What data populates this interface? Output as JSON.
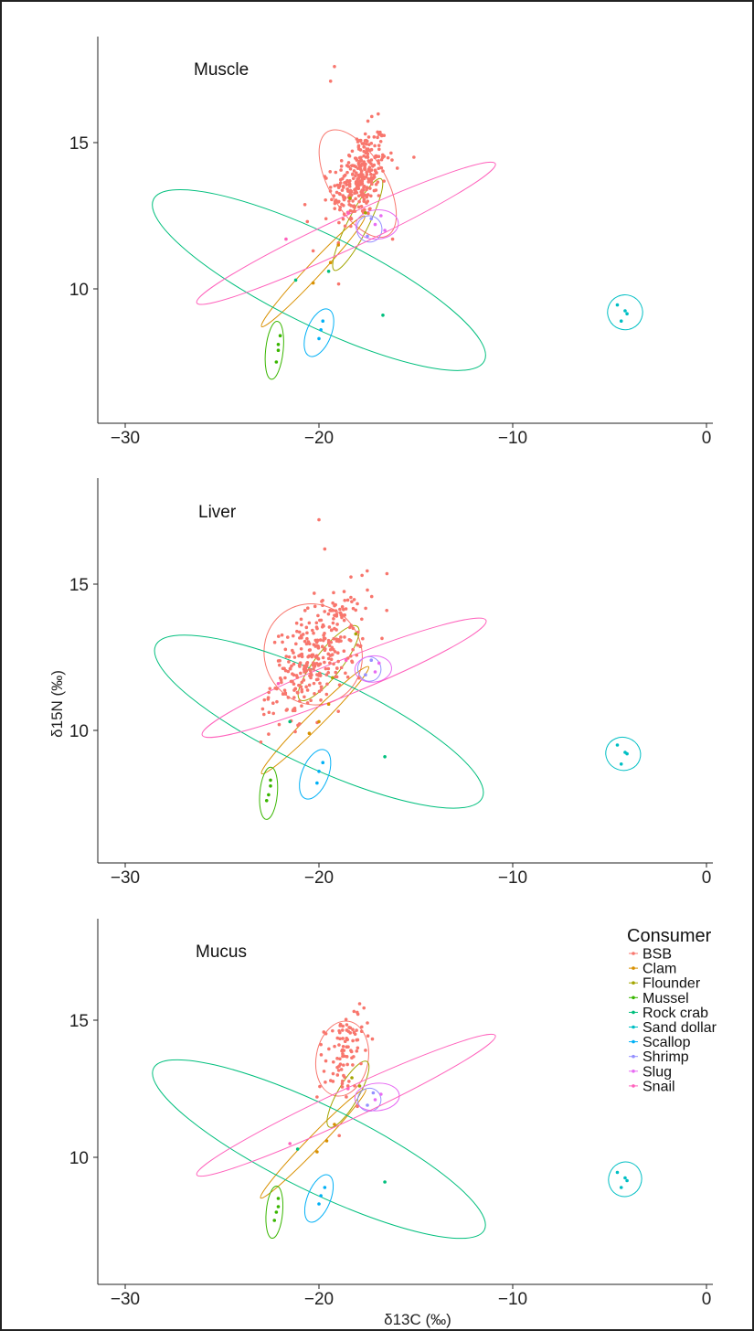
{
  "chart_data": {
    "type": "scatter",
    "x_axis": {
      "title": "δ13C (‰)",
      "lim": [
        -30,
        0
      ],
      "ticks": [
        -30,
        -20,
        -10,
        0
      ],
      "tick_labels": [
        "−30",
        "−20",
        "−10",
        "0"
      ]
    },
    "y_axis": {
      "title": "δ15N (‰)",
      "lim": [
        6,
        18.5
      ],
      "ticks": [
        10,
        15
      ],
      "tick_labels": [
        "10",
        "15"
      ]
    },
    "grid": false,
    "legend": {
      "title": "Consumer",
      "placement": "top-right of bottom panel",
      "entries": [
        {
          "name": "BSB",
          "color": "#F8766D"
        },
        {
          "name": "Clam",
          "color": "#D89000"
        },
        {
          "name": "Flounder",
          "color": "#A3A500"
        },
        {
          "name": "Mussel",
          "color": "#39B600"
        },
        {
          "name": "Rock crab",
          "color": "#00BF7D"
        },
        {
          "name": "Sand dollar",
          "color": "#00BFC4"
        },
        {
          "name": "Scallop",
          "color": "#00B0F6"
        },
        {
          "name": "Shrimp",
          "color": "#9590FF"
        },
        {
          "name": "Slug",
          "color": "#E76BF3"
        },
        {
          "name": "Snail",
          "color": "#FF62BC"
        }
      ]
    },
    "panels": [
      {
        "label": "Muscle",
        "ellipses": [
          {
            "series": "BSB",
            "cx": -18.0,
            "cy": 13.6,
            "rx": 1.45,
            "ry": 2.05,
            "angle": 30
          },
          {
            "series": "Clam",
            "cx": -20.3,
            "cy": 10.6,
            "rx": 3.9,
            "ry": 0.24,
            "angle": 47
          },
          {
            "series": "Flounder",
            "cx": -18.0,
            "cy": 12.2,
            "rx": 2.65,
            "ry": 0.35,
            "angle": 63
          },
          {
            "series": "Mussel",
            "cx": -22.3,
            "cy": 7.9,
            "rx": 1.5,
            "ry": 0.3,
            "angle": 84
          },
          {
            "series": "Rock crab",
            "cx": -20.0,
            "cy": 10.3,
            "rx": 9.5,
            "ry": 1.55,
            "angle": -26
          },
          {
            "series": "Sand dollar",
            "cx": -4.2,
            "cy": 9.2,
            "rx": 0.9,
            "ry": 0.6,
            "angle": 70
          },
          {
            "series": "Scallop",
            "cx": -20.0,
            "cy": 8.5,
            "rx": 1.3,
            "ry": 0.42,
            "angle": 68
          },
          {
            "series": "Shrimp",
            "cx": -17.4,
            "cy": 12.05,
            "rx": 0.65,
            "ry": 0.45,
            "angle": 10
          },
          {
            "series": "Slug",
            "cx": -17.0,
            "cy": 12.2,
            "rx": 1.1,
            "ry": 0.5,
            "angle": 5
          },
          {
            "series": "Snail",
            "cx": -18.6,
            "cy": 11.9,
            "rx": 8.5,
            "ry": 0.55,
            "angle": 25
          }
        ],
        "outlier_points": [
          {
            "series": "BSB",
            "x": -19.2,
            "y": 17.6
          },
          {
            "series": "BSB",
            "x": -19.4,
            "y": 17.1
          },
          {
            "series": "BSB",
            "x": -15.1,
            "y": 14.5
          },
          {
            "series": "BSB",
            "x": -16.2,
            "y": 11.7
          },
          {
            "series": "BSB",
            "x": -20.3,
            "y": 11.3
          },
          {
            "series": "BSB",
            "x": -20.6,
            "y": 12.3
          },
          {
            "series": "Clam",
            "x": -19.0,
            "y": 11.5
          },
          {
            "series": "Clam",
            "x": -20.3,
            "y": 10.2
          },
          {
            "series": "Clam",
            "x": -19.4,
            "y": 10.9
          },
          {
            "series": "Flounder",
            "x": -18.4,
            "y": 13.1
          },
          {
            "series": "Flounder",
            "x": -17.6,
            "y": 12.6
          },
          {
            "series": "Mussel",
            "x": -22.0,
            "y": 8.4
          },
          {
            "series": "Mussel",
            "x": -22.1,
            "y": 7.9
          },
          {
            "series": "Mussel",
            "x": -22.2,
            "y": 7.5
          },
          {
            "series": "Mussel",
            "x": -22.1,
            "y": 8.1
          },
          {
            "series": "Rock crab",
            "x": -21.2,
            "y": 10.3
          },
          {
            "series": "Rock crab",
            "x": -19.5,
            "y": 10.6
          },
          {
            "series": "Rock crab",
            "x": -16.7,
            "y": 9.1
          },
          {
            "series": "Sand dollar",
            "x": -4.6,
            "y": 9.45
          },
          {
            "series": "Sand dollar",
            "x": -4.2,
            "y": 9.25
          },
          {
            "series": "Sand dollar",
            "x": -4.1,
            "y": 9.15
          },
          {
            "series": "Sand dollar",
            "x": -4.4,
            "y": 8.9
          },
          {
            "series": "Scallop",
            "x": -19.8,
            "y": 8.9
          },
          {
            "series": "Scallop",
            "x": -19.9,
            "y": 8.6
          },
          {
            "series": "Scallop",
            "x": -20.0,
            "y": 8.3
          },
          {
            "series": "Shrimp",
            "x": -17.3,
            "y": 12.4
          },
          {
            "series": "Shrimp",
            "x": -17.5,
            "y": 11.8
          },
          {
            "series": "Slug",
            "x": -16.8,
            "y": 12.5
          },
          {
            "series": "Slug",
            "x": -17.1,
            "y": 12.2
          },
          {
            "series": "Slug",
            "x": -16.6,
            "y": 12.0
          },
          {
            "series": "Snail",
            "x": -21.7,
            "y": 11.7
          },
          {
            "series": "Snail",
            "x": -18.5,
            "y": 12.6
          }
        ],
        "bsb_cluster": {
          "mean_x": -17.9,
          "mean_y": 13.8,
          "sd_x": 0.7,
          "sd_y": 0.75,
          "n": 300
        }
      },
      {
        "label": "Liver",
        "ellipses": [
          {
            "series": "BSB",
            "cx": -20.3,
            "cy": 12.6,
            "rx": 2.5,
            "ry": 1.75,
            "angle": 30
          },
          {
            "series": "Clam",
            "cx": -20.2,
            "cy": 10.35,
            "rx": 3.9,
            "ry": 0.25,
            "angle": 45
          },
          {
            "series": "Flounder",
            "cx": -19.5,
            "cy": 12.3,
            "rx": 2.4,
            "ry": 0.45,
            "angle": 52
          },
          {
            "series": "Mussel",
            "cx": -22.6,
            "cy": 7.85,
            "rx": 1.35,
            "ry": 0.3,
            "angle": 85
          },
          {
            "series": "Rock crab",
            "cx": -20.0,
            "cy": 10.3,
            "rx": 9.3,
            "ry": 1.55,
            "angle": -25
          },
          {
            "series": "Sand dollar",
            "cx": -4.3,
            "cy": 9.2,
            "rx": 0.85,
            "ry": 0.6,
            "angle": 70
          },
          {
            "series": "Scallop",
            "cx": -20.2,
            "cy": 8.5,
            "rx": 1.35,
            "ry": 0.45,
            "angle": 68
          },
          {
            "series": "Shrimp",
            "cx": -17.4,
            "cy": 12.1,
            "rx": 0.6,
            "ry": 0.42,
            "angle": 10
          },
          {
            "series": "Slug",
            "cx": -17.2,
            "cy": 12.1,
            "rx": 0.95,
            "ry": 0.45,
            "angle": 5
          },
          {
            "series": "Snail",
            "cx": -18.7,
            "cy": 11.8,
            "rx": 7.9,
            "ry": 0.6,
            "angle": 22
          }
        ],
        "outlier_points": [
          {
            "series": "BSB",
            "x": -20.0,
            "y": 17.2
          },
          {
            "series": "BSB",
            "x": -19.7,
            "y": 16.2
          },
          {
            "series": "BSB",
            "x": -17.5,
            "y": 14.8
          },
          {
            "series": "BSB",
            "x": -23.0,
            "y": 9.6
          },
          {
            "series": "BSB",
            "x": -21.0,
            "y": 11.0
          },
          {
            "series": "Clam",
            "x": -20.5,
            "y": 9.9
          },
          {
            "series": "Clam",
            "x": -19.5,
            "y": 10.9
          },
          {
            "series": "Clam",
            "x": -20.0,
            "y": 10.3
          },
          {
            "series": "Flounder",
            "x": -18.1,
            "y": 13.3
          },
          {
            "series": "Flounder",
            "x": -19.3,
            "y": 11.8
          },
          {
            "series": "Mussel",
            "x": -22.5,
            "y": 8.3
          },
          {
            "series": "Mussel",
            "x": -22.6,
            "y": 7.8
          },
          {
            "series": "Mussel",
            "x": -22.7,
            "y": 7.6
          },
          {
            "series": "Mussel",
            "x": -22.5,
            "y": 8.1
          },
          {
            "series": "Rock crab",
            "x": -21.5,
            "y": 10.3
          },
          {
            "series": "Rock crab",
            "x": -16.6,
            "y": 9.1
          },
          {
            "series": "Sand dollar",
            "x": -4.6,
            "y": 9.5
          },
          {
            "series": "Sand dollar",
            "x": -4.2,
            "y": 9.25
          },
          {
            "series": "Sand dollar",
            "x": -4.1,
            "y": 9.2
          },
          {
            "series": "Sand dollar",
            "x": -4.4,
            "y": 8.85
          },
          {
            "series": "Scallop",
            "x": -19.8,
            "y": 8.9
          },
          {
            "series": "Scallop",
            "x": -20.0,
            "y": 8.6
          },
          {
            "series": "Scallop",
            "x": -20.1,
            "y": 8.2
          },
          {
            "series": "Shrimp",
            "x": -17.3,
            "y": 12.4
          },
          {
            "series": "Shrimp",
            "x": -17.6,
            "y": 11.9
          },
          {
            "series": "Slug",
            "x": -16.9,
            "y": 12.3
          },
          {
            "series": "Slug",
            "x": -17.1,
            "y": 12.0
          },
          {
            "series": "Snail",
            "x": -22.1,
            "y": 11.6
          },
          {
            "series": "Snail",
            "x": -18.6,
            "y": 12.4
          }
        ],
        "bsb_cluster": {
          "mean_x": -20.1,
          "mean_y": 12.6,
          "sd_x": 1.2,
          "sd_y": 0.85,
          "n": 320
        }
      },
      {
        "label": "Mucus",
        "ellipses": [
          {
            "series": "BSB",
            "cx": -18.8,
            "cy": 13.6,
            "rx": 1.95,
            "ry": 0.95,
            "angle": 80
          },
          {
            "series": "Clam",
            "cx": -20.3,
            "cy": 10.5,
            "rx": 3.9,
            "ry": 0.24,
            "angle": 46
          },
          {
            "series": "Flounder",
            "cx": -18.5,
            "cy": 12.3,
            "rx": 1.95,
            "ry": 0.38,
            "angle": 60
          },
          {
            "series": "Mussel",
            "cx": -22.3,
            "cy": 8.0,
            "rx": 1.35,
            "ry": 0.3,
            "angle": 85
          },
          {
            "series": "Rock crab",
            "cx": -20.0,
            "cy": 10.3,
            "rx": 9.5,
            "ry": 1.55,
            "angle": -26
          },
          {
            "series": "Sand dollar",
            "cx": -4.2,
            "cy": 9.2,
            "rx": 0.9,
            "ry": 0.6,
            "angle": 70
          },
          {
            "series": "Scallop",
            "cx": -20.0,
            "cy": 8.5,
            "rx": 1.3,
            "ry": 0.42,
            "angle": 68
          },
          {
            "series": "Shrimp",
            "cx": -17.4,
            "cy": 12.1,
            "rx": 0.6,
            "ry": 0.42,
            "angle": 10
          },
          {
            "series": "Slug",
            "cx": -17.0,
            "cy": 12.2,
            "rx": 1.15,
            "ry": 0.5,
            "angle": 5
          },
          {
            "series": "Snail",
            "cx": -18.6,
            "cy": 11.9,
            "rx": 8.5,
            "ry": 0.55,
            "angle": 25
          }
        ],
        "outlier_points": [
          {
            "series": "BSB",
            "x": -17.9,
            "y": 15.6
          },
          {
            "series": "BSB",
            "x": -17.5,
            "y": 14.9
          },
          {
            "series": "BSB",
            "x": -20.1,
            "y": 12.2
          },
          {
            "series": "Clam",
            "x": -19.6,
            "y": 10.6
          },
          {
            "series": "Clam",
            "x": -20.1,
            "y": 10.2
          },
          {
            "series": "Clam",
            "x": -19.2,
            "y": 11.2
          },
          {
            "series": "Flounder",
            "x": -18.3,
            "y": 12.9
          },
          {
            "series": "Flounder",
            "x": -17.9,
            "y": 12.6
          },
          {
            "series": "Mussel",
            "x": -22.1,
            "y": 8.5
          },
          {
            "series": "Mussel",
            "x": -22.2,
            "y": 8.0
          },
          {
            "series": "Mussel",
            "x": -22.3,
            "y": 7.7
          },
          {
            "series": "Mussel",
            "x": -22.1,
            "y": 8.2
          },
          {
            "series": "Rock crab",
            "x": -21.1,
            "y": 10.3
          },
          {
            "series": "Rock crab",
            "x": -16.6,
            "y": 9.1
          },
          {
            "series": "Sand dollar",
            "x": -4.6,
            "y": 9.45
          },
          {
            "series": "Sand dollar",
            "x": -4.2,
            "y": 9.25
          },
          {
            "series": "Sand dollar",
            "x": -4.1,
            "y": 9.15
          },
          {
            "series": "Sand dollar",
            "x": -4.4,
            "y": 8.9
          },
          {
            "series": "Scallop",
            "x": -19.7,
            "y": 8.9
          },
          {
            "series": "Scallop",
            "x": -19.9,
            "y": 8.6
          },
          {
            "series": "Scallop",
            "x": -20.0,
            "y": 8.3
          },
          {
            "series": "Shrimp",
            "x": -17.2,
            "y": 12.35
          },
          {
            "series": "Shrimp",
            "x": -17.5,
            "y": 11.9
          },
          {
            "series": "Slug",
            "x": -16.8,
            "y": 12.3
          },
          {
            "series": "Slug",
            "x": -17.1,
            "y": 12.1
          },
          {
            "series": "Snail",
            "x": -21.5,
            "y": 10.5
          },
          {
            "series": "Snail",
            "x": -18.5,
            "y": 12.5
          }
        ],
        "bsb_cluster": {
          "mean_x": -18.7,
          "mean_y": 13.8,
          "sd_x": 0.5,
          "sd_y": 0.75,
          "n": 90
        }
      }
    ]
  }
}
